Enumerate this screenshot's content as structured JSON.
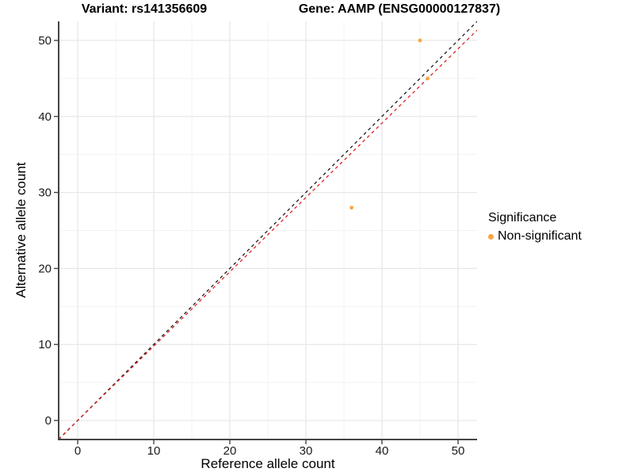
{
  "titles": {
    "variant": "Variant: rs141356609",
    "gene": "Gene: AAMP (ENSG00000127837)"
  },
  "axes": {
    "xlabel": "Reference allele count",
    "ylabel": "Alternative allele count"
  },
  "legend": {
    "title": "Significance",
    "position": "right",
    "entries": [
      {
        "label": "Non-significant",
        "color": "#F9A440"
      }
    ]
  },
  "chart_data": {
    "type": "scatter",
    "title_left": "Variant: rs141356609",
    "title_right": "Gene: AAMP (ENSG00000127837)",
    "xlabel": "Reference allele count",
    "ylabel": "Alternative allele count",
    "xlim": [
      -2.5,
      52.5
    ],
    "ylim": [
      -2.5,
      52.5
    ],
    "x_ticks": [
      0,
      10,
      20,
      30,
      40,
      50
    ],
    "y_ticks": [
      0,
      10,
      20,
      30,
      40,
      50
    ],
    "grid": {
      "major": true,
      "minor": true
    },
    "legend_position": "right",
    "series": [
      {
        "name": "Non-significant",
        "color": "#F9A440",
        "points": [
          {
            "x": 45,
            "y": 50
          },
          {
            "x": 46,
            "y": 45
          },
          {
            "x": 36,
            "y": 28
          }
        ]
      }
    ],
    "reference_lines": [
      {
        "name": "identity",
        "slope": 1.0,
        "intercept": 0,
        "color": "#1A1A1A",
        "style": "dashed"
      },
      {
        "name": "expected-ratio",
        "slope": 0.978,
        "intercept": 0,
        "color": "#E02020",
        "style": "dashed"
      }
    ],
    "colors": {
      "grid_major": "#E7E7E7",
      "grid_minor": "#F3F3F3",
      "axis_line": "#444444",
      "tick_label": "#1A1A1A"
    }
  }
}
